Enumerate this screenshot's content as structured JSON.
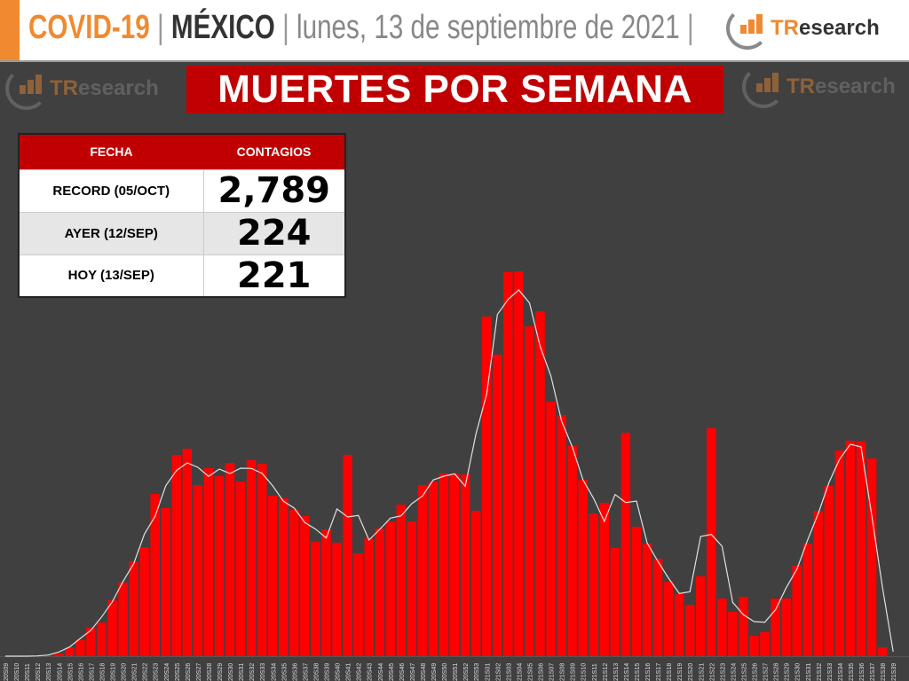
{
  "header": {
    "title_covid": "COVID-19",
    "separator": "|",
    "title_country": "MÉXICO",
    "date": "lunes, 13 de septiembre de 2021",
    "accent_color": "#f08a30"
  },
  "logo": {
    "part1": "TR",
    "part2": "esearch"
  },
  "banner": {
    "title": "MUERTES POR SEMANA",
    "color": "#c00000"
  },
  "stats_table": {
    "headers": [
      "FECHA",
      "CONTAGIOS"
    ],
    "rows": [
      {
        "label": "RECORD (05/OCT)",
        "value": "2,789"
      },
      {
        "label": "AYER (12/SEP)",
        "value": "224"
      },
      {
        "label": "HOY (13/SEP)",
        "value": "221"
      }
    ]
  },
  "chart_data": {
    "type": "bar",
    "bar_color": "#ff0000",
    "trend_line_color": "#e0e0e0",
    "background": "#404040",
    "grid": false,
    "ylim": [
      0,
      9000
    ],
    "categories": [
      "20S09",
      "20S10",
      "20S11",
      "20S12",
      "20S13",
      "20S14",
      "20S15",
      "20S16",
      "20S17",
      "20S18",
      "20S19",
      "20S20",
      "20S21",
      "20S22",
      "20S23",
      "20S24",
      "20S25",
      "20S26",
      "20S27",
      "20S28",
      "20S29",
      "20S30",
      "20S31",
      "20S32",
      "20S33",
      "20S34",
      "20S35",
      "20S36",
      "20S37",
      "20S38",
      "20S39",
      "20S40",
      "20S41",
      "20S42",
      "20S43",
      "20S44",
      "20S45",
      "20S46",
      "20S47",
      "20S48",
      "20S49",
      "20S50",
      "20S51",
      "20S52",
      "20S53",
      "21S01",
      "21S02",
      "21S03",
      "21S04",
      "21S05",
      "21S06",
      "21S07",
      "21S08",
      "21S09",
      "21S10",
      "21S11",
      "21S12",
      "21S13",
      "21S14",
      "21S15",
      "21S16",
      "21S17",
      "21S18",
      "21S19",
      "21S20",
      "21S21",
      "21S22",
      "21S23",
      "21S24",
      "21S25",
      "21S26",
      "21S27",
      "21S28",
      "21S29",
      "21S30",
      "21S31",
      "21S32",
      "21S33",
      "21S34",
      "21S35",
      "21S36",
      "21S37",
      "21S38",
      "21S39"
    ],
    "values": [
      0,
      0,
      0,
      0,
      20,
      60,
      200,
      360,
      640,
      760,
      1260,
      1660,
      2140,
      2460,
      3660,
      3340,
      4540,
      4680,
      3860,
      4240,
      4060,
      4360,
      3940,
      4420,
      4340,
      3620,
      3560,
      3300,
      3160,
      2580,
      2860,
      2560,
      4540,
      2320,
      2660,
      2880,
      3040,
      3420,
      3040,
      3860,
      3940,
      4120,
      4120,
      4100,
      3280,
      7660,
      6800,
      8660,
      8680,
      7440,
      7780,
      5740,
      5440,
      4740,
      3980,
      3220,
      3460,
      2440,
      5040,
      2920,
      2540,
      2200,
      1680,
      1400,
      1160,
      1800,
      5140,
      1300,
      1000,
      1340,
      460,
      540,
      1300,
      1300,
      2040,
      2540,
      3280,
      3840,
      4640,
      4860,
      4840,
      4460,
      200,
      0
    ]
  }
}
